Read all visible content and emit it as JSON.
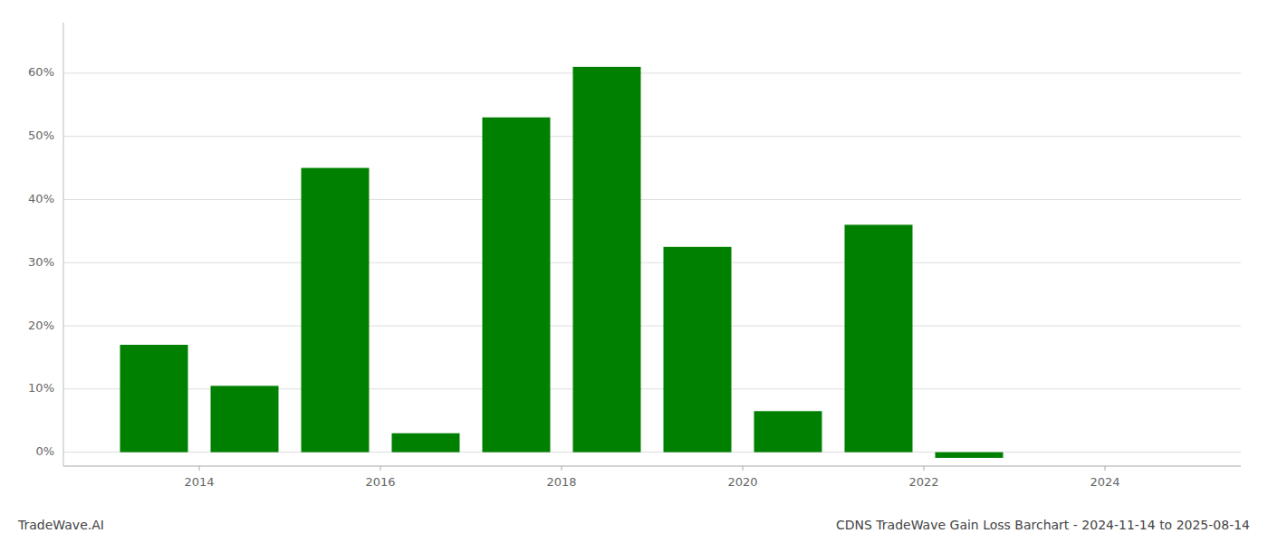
{
  "chart_data": {
    "type": "bar",
    "title": "CDNS TradeWave Gain Loss Barchart - 2024-11-14 to 2025-08-14",
    "annotations": [
      "TradeWave.AI"
    ],
    "x": [
      2013.5,
      2014.5,
      2015.5,
      2016.5,
      2017.5,
      2018.5,
      2019.5,
      2020.5,
      2021.5,
      2022.5,
      2023.5
    ],
    "values": [
      0.17,
      0.105,
      0.45,
      0.03,
      0.53,
      0.61,
      0.325,
      0.065,
      0.36,
      -0.009,
      0.0
    ],
    "colors": [
      "#008000",
      "#008000",
      "#008000",
      "#008000",
      "#008000",
      "#008000",
      "#008000",
      "#008000",
      "#008000",
      "#008000",
      "#cc0000"
    ],
    "xlim": [
      2012.5,
      2025.5
    ],
    "xticks": [
      2014,
      2016,
      2018,
      2020,
      2022,
      2024
    ],
    "ylim": [
      -0.022,
      0.68
    ],
    "yticks": [
      {
        "value": 0.0,
        "label": "0%"
      },
      {
        "value": 0.1,
        "label": "10%"
      },
      {
        "value": 0.2,
        "label": "20%"
      },
      {
        "value": 0.3,
        "label": "30%"
      },
      {
        "value": 0.4,
        "label": "40%"
      },
      {
        "value": 0.5,
        "label": "50%"
      },
      {
        "value": 0.6,
        "label": "60%"
      }
    ],
    "grid": true
  }
}
